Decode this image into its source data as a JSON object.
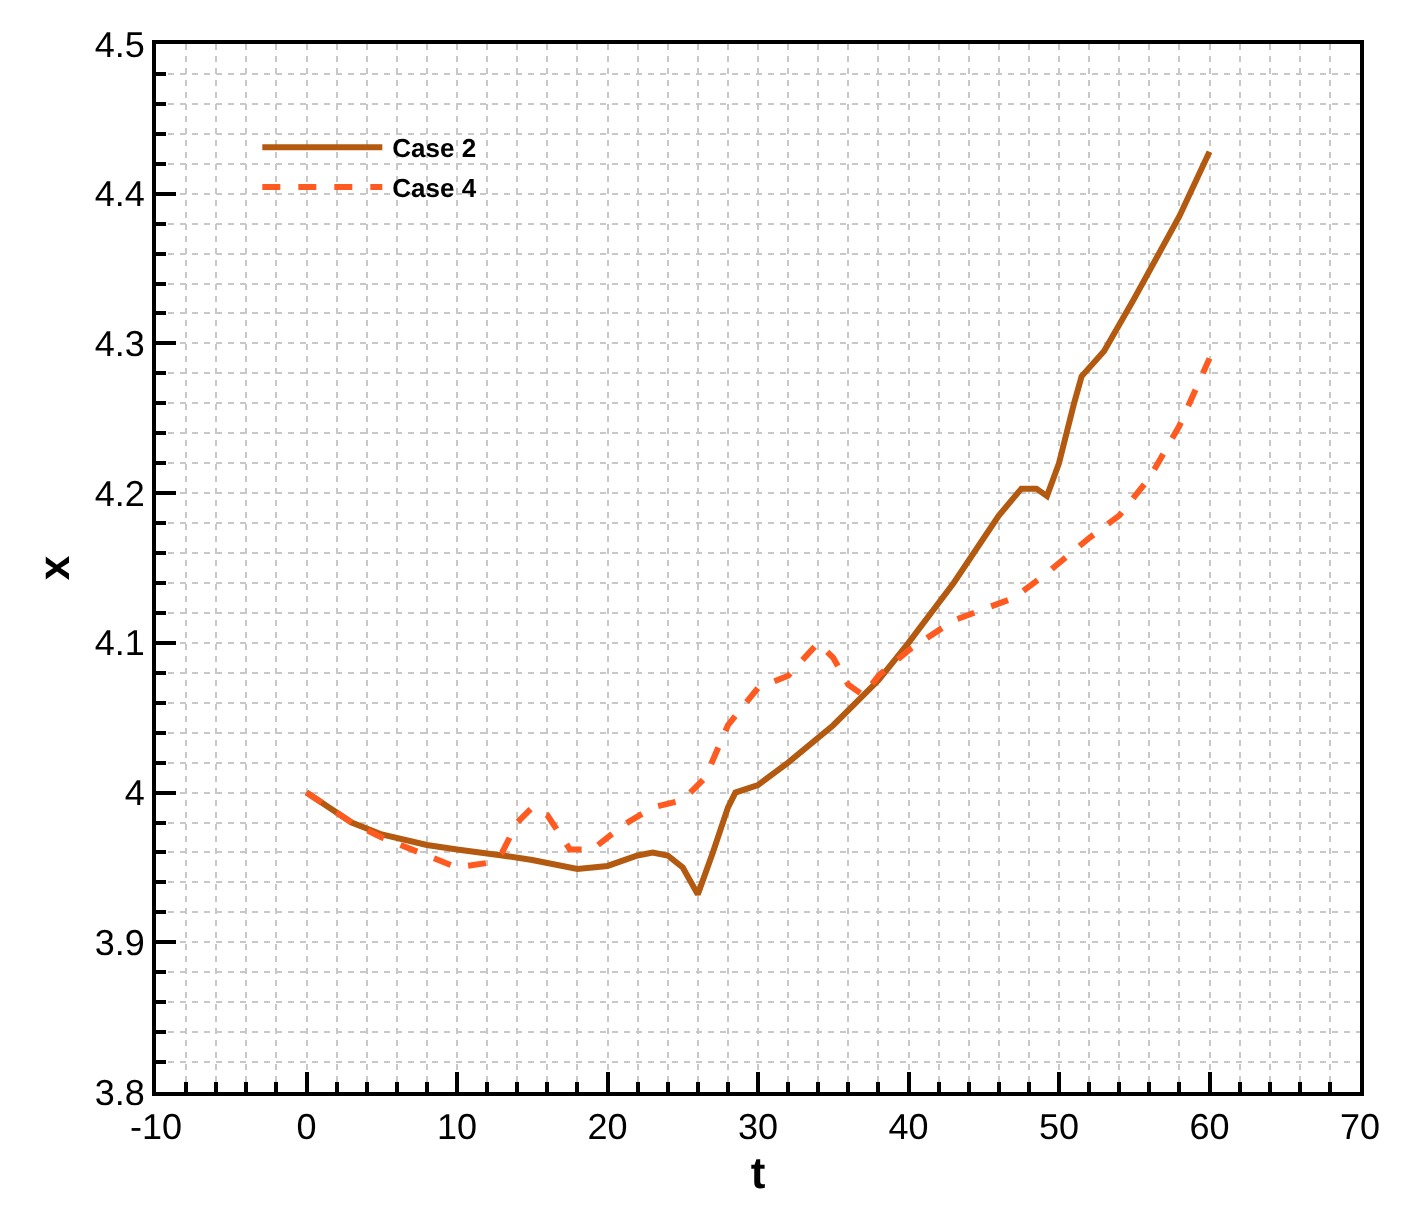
{
  "chart_data": {
    "type": "line",
    "xlabel": "t",
    "ylabel": "x",
    "xlim": [
      -10,
      70
    ],
    "ylim": [
      3.8,
      4.5
    ],
    "xticks": [
      -10,
      {
        "value": -8,
        "label": null
      },
      {
        "value": -6,
        "label": null
      },
      {
        "value": -4,
        "label": null
      },
      {
        "value": -2,
        "label": null
      },
      0,
      {
        "value": 2,
        "label": null
      },
      {
        "value": 4,
        "label": null
      },
      {
        "value": 6,
        "label": null
      },
      {
        "value": 8,
        "label": null
      },
      10,
      {
        "value": 12,
        "label": null
      },
      {
        "value": 14,
        "label": null
      },
      {
        "value": 16,
        "label": null
      },
      {
        "value": 18,
        "label": null
      },
      20,
      {
        "value": 22,
        "label": null
      },
      {
        "value": 24,
        "label": null
      },
      {
        "value": 26,
        "label": null
      },
      {
        "value": 28,
        "label": null
      },
      30,
      {
        "value": 32,
        "label": null
      },
      {
        "value": 34,
        "label": null
      },
      {
        "value": 36,
        "label": null
      },
      {
        "value": 38,
        "label": null
      },
      40,
      {
        "value": 42,
        "label": null
      },
      {
        "value": 44,
        "label": null
      },
      {
        "value": 46,
        "label": null
      },
      {
        "value": 48,
        "label": null
      },
      50,
      {
        "value": 52,
        "label": null
      },
      {
        "value": 54,
        "label": null
      },
      {
        "value": 56,
        "label": null
      },
      {
        "value": 58,
        "label": null
      },
      60,
      {
        "value": 62,
        "label": null
      },
      {
        "value": 64,
        "label": null
      },
      {
        "value": 66,
        "label": null
      },
      {
        "value": 68,
        "label": null
      },
      70
    ],
    "yticks": [
      3.8,
      {
        "value": 3.82,
        "label": null
      },
      {
        "value": 3.84,
        "label": null
      },
      {
        "value": 3.86,
        "label": null
      },
      {
        "value": 3.88,
        "label": null
      },
      3.9,
      {
        "value": 3.92,
        "label": null
      },
      {
        "value": 3.94,
        "label": null
      },
      {
        "value": 3.96,
        "label": null
      },
      {
        "value": 3.98,
        "label": null
      },
      4,
      {
        "value": 4.02,
        "label": null
      },
      {
        "value": 4.04,
        "label": null
      },
      {
        "value": 4.06,
        "label": null
      },
      {
        "value": 4.08,
        "label": null
      },
      4.1,
      {
        "value": 4.12,
        "label": null
      },
      {
        "value": 4.14,
        "label": null
      },
      {
        "value": 4.16,
        "label": null
      },
      {
        "value": 4.18,
        "label": null
      },
      4.2,
      {
        "value": 4.22,
        "label": null
      },
      {
        "value": 4.24,
        "label": null
      },
      {
        "value": 4.26,
        "label": null
      },
      {
        "value": 4.28,
        "label": null
      },
      4.3,
      {
        "value": 4.32,
        "label": null
      },
      {
        "value": 4.34,
        "label": null
      },
      {
        "value": 4.36,
        "label": null
      },
      {
        "value": 4.38,
        "label": null
      },
      4.4,
      {
        "value": 4.42,
        "label": null
      },
      {
        "value": 4.44,
        "label": null
      },
      {
        "value": 4.46,
        "label": null
      },
      {
        "value": 4.48,
        "label": null
      },
      4.5
    ],
    "grid": true,
    "legend": "top left",
    "marker": "none",
    "series": [
      {
        "name": "Case 2",
        "color": "#b35a10",
        "line_style": "solid",
        "x": [
          0,
          1.5,
          3,
          5,
          8,
          10,
          13,
          15,
          18,
          20,
          22,
          23,
          24,
          25,
          26,
          27,
          28,
          28.5,
          30,
          32,
          35,
          38,
          40,
          43,
          46,
          47.5,
          48.5,
          49.2,
          50,
          51,
          51.5,
          53,
          55,
          58,
          60
        ],
        "values": [
          4.0,
          3.99,
          3.98,
          3.972,
          3.965,
          3.962,
          3.958,
          3.955,
          3.949,
          3.951,
          3.958,
          3.96,
          3.958,
          3.95,
          3.932,
          3.96,
          3.99,
          4.0,
          4.005,
          4.02,
          4.045,
          4.075,
          4.1,
          4.14,
          4.185,
          4.203,
          4.203,
          4.198,
          4.22,
          4.26,
          4.278,
          4.295,
          4.33,
          4.385,
          4.428
        ]
      },
      {
        "name": "Case 4",
        "color": "#ff5a1f",
        "line_style": "dashed",
        "x": [
          0,
          1.5,
          3,
          5,
          8,
          10,
          12,
          13,
          14,
          15,
          16,
          17.5,
          19,
          21,
          23,
          25,
          26.5,
          28,
          30,
          32,
          34,
          35,
          36,
          37,
          38,
          40,
          43,
          47,
          49,
          52,
          54,
          56,
          58,
          60
        ],
        "values": [
          4.0,
          3.99,
          3.98,
          3.97,
          3.958,
          3.95,
          3.953,
          3.96,
          3.98,
          3.99,
          3.985,
          3.962,
          3.962,
          3.978,
          3.99,
          3.995,
          4.01,
          4.045,
          4.07,
          4.078,
          4.1,
          4.09,
          4.072,
          4.065,
          4.078,
          4.095,
          4.115,
          4.13,
          4.145,
          4.17,
          4.185,
          4.21,
          4.245,
          4.29
        ]
      }
    ]
  }
}
